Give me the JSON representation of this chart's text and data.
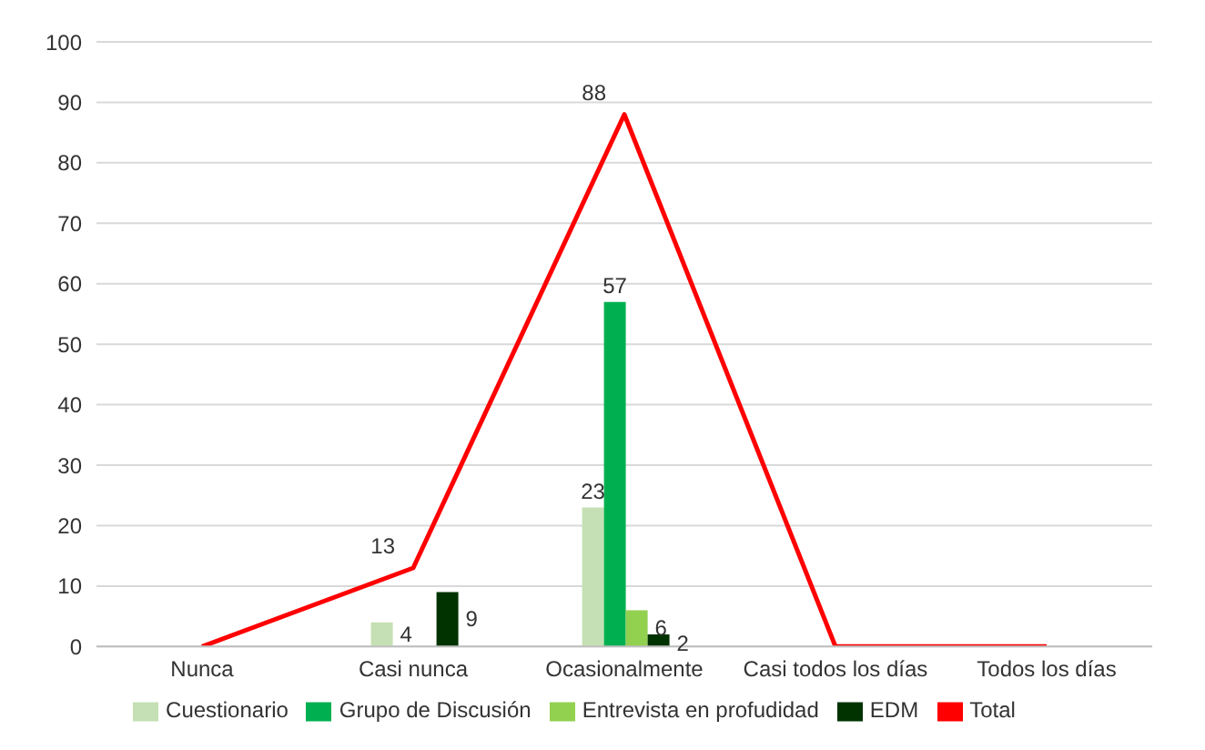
{
  "chart_data": {
    "type": "bar",
    "categories": [
      "Nunca",
      "Casi nunca",
      "Ocasionalmente",
      "Casi todos los días",
      "Todos los días"
    ],
    "series": [
      {
        "name": "Cuestionario",
        "color": "#c5e0b4",
        "values": [
          null,
          4,
          23,
          null,
          null
        ],
        "value_labels": [
          null,
          "4",
          "23",
          null,
          null
        ]
      },
      {
        "name": "Grupo de Discusión",
        "color": "#00b050",
        "values": [
          null,
          null,
          57,
          null,
          null
        ],
        "value_labels": [
          null,
          null,
          "57",
          null,
          null
        ]
      },
      {
        "name": "Entrevista en profudidad",
        "color": "#92d050",
        "values": [
          null,
          null,
          6,
          null,
          null
        ],
        "value_labels": [
          null,
          null,
          "6",
          null,
          null
        ]
      },
      {
        "name": "EDM",
        "color": "#003300",
        "values": [
          null,
          9,
          2,
          null,
          null
        ],
        "value_labels": [
          null,
          "9",
          "2",
          null,
          null
        ]
      },
      {
        "name": "Total",
        "type": "line",
        "color": "#ff0000",
        "values": [
          0,
          13,
          88,
          0,
          0
        ],
        "value_labels": [
          null,
          "13",
          "88",
          null,
          null
        ]
      }
    ],
    "ylim": [
      0,
      100
    ],
    "yticks": [
      0,
      10,
      20,
      30,
      40,
      50,
      60,
      70,
      80,
      90,
      100
    ],
    "grid": "y",
    "legend": "bottom"
  }
}
